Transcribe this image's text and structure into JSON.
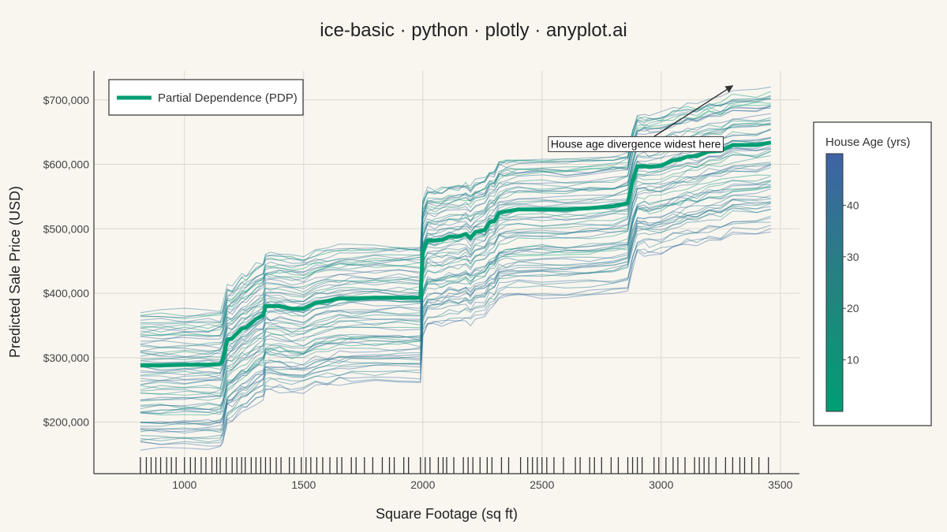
{
  "chart_data": {
    "type": "line",
    "title": "ice-basic · python · plotly · anyplot.ai",
    "xlabel": "Square Footage (sq ft)",
    "ylabel": "Predicted Sale Price (USD)",
    "xlim": [
      620,
      3580
    ],
    "ylim": [
      120000,
      745000
    ],
    "x_ticks": [
      1000,
      1500,
      2000,
      2500,
      3000,
      3500
    ],
    "x_tick_labels": [
      "1000",
      "1500",
      "2000",
      "2500",
      "3000",
      "3500"
    ],
    "y_ticks": [
      200000,
      300000,
      400000,
      500000,
      600000,
      700000
    ],
    "y_tick_labels": [
      "$200,000",
      "$300,000",
      "$400,000",
      "$500,000",
      "$600,000",
      "$700,000"
    ],
    "grid": true,
    "legend": {
      "position": "top-left",
      "entries": [
        {
          "label": "Partial Dependence (PDP)",
          "color": "#009e73"
        }
      ]
    },
    "colorbar": {
      "title": "House Age (yrs)",
      "range": [
        0,
        50
      ],
      "ticks": [
        10,
        20,
        30,
        40
      ],
      "color_low": "#009e73",
      "color_high": "#3f63a5"
    },
    "pdp": {
      "name": "Partial Dependence (PDP)",
      "color": "#009e73",
      "x": [
        815,
        900,
        1000,
        1100,
        1150,
        1160,
        1180,
        1200,
        1240,
        1260,
        1300,
        1330,
        1340,
        1360,
        1400,
        1450,
        1500,
        1550,
        1600,
        1650,
        1700,
        1800,
        1900,
        1990,
        2000,
        2020,
        2050,
        2080,
        2110,
        2150,
        2180,
        2200,
        2220,
        2260,
        2280,
        2300,
        2320,
        2350,
        2400,
        2500,
        2600,
        2700,
        2800,
        2860,
        2880,
        2900,
        2930,
        2950,
        3000,
        3050,
        3080,
        3110,
        3150,
        3200,
        3250,
        3300,
        3400,
        3460
      ],
      "y": [
        288000,
        288000,
        289000,
        289000,
        290000,
        296000,
        328000,
        330000,
        345000,
        347000,
        360000,
        366000,
        380000,
        380000,
        380000,
        376000,
        376000,
        385000,
        388000,
        392000,
        392000,
        393000,
        393000,
        393000,
        465000,
        482000,
        482000,
        483000,
        488000,
        488000,
        492000,
        486000,
        495000,
        498000,
        510000,
        512000,
        525000,
        527000,
        530000,
        530000,
        530000,
        532000,
        535000,
        540000,
        575000,
        597000,
        597000,
        596000,
        598000,
        606000,
        608000,
        612000,
        613000,
        620000,
        621000,
        630000,
        630000,
        634000
      ]
    },
    "ice": {
      "count": 70,
      "y_offset_range": [
        -125000,
        84000
      ],
      "age_range": [
        1,
        49
      ],
      "opacity": 0.45
    },
    "rug": [
      815,
      840,
      860,
      880,
      900,
      925,
      945,
      965,
      1000,
      1025,
      1045,
      1070,
      1090,
      1115,
      1135,
      1150,
      1175,
      1200,
      1220,
      1240,
      1255,
      1280,
      1300,
      1320,
      1340,
      1360,
      1385,
      1405,
      1440,
      1460,
      1490,
      1510,
      1530,
      1555,
      1580,
      1610,
      1640,
      1660,
      1700,
      1720,
      1755,
      1790,
      1830,
      1860,
      1880,
      1920,
      1940,
      1990,
      2010,
      2030,
      2065,
      2085,
      2100,
      2130,
      2170,
      2190,
      2210,
      2240,
      2270,
      2290,
      2330,
      2360,
      2410,
      2440,
      2460,
      2480,
      2500,
      2520,
      2550,
      2590,
      2640,
      2660,
      2700,
      2720,
      2750,
      2790,
      2820,
      2860,
      2880,
      2900,
      2920,
      2970,
      2990,
      3020,
      3050,
      3070,
      3100,
      3140,
      3160,
      3180,
      3200,
      3230,
      3270,
      3300,
      3330,
      3350,
      3380,
      3410,
      3450
    ],
    "annotations": [
      {
        "text": "House age divergence widest here",
        "label_x": 2530,
        "label_y": 632000,
        "arrow_to_x": 3300,
        "arrow_to_y": 722000
      }
    ]
  }
}
